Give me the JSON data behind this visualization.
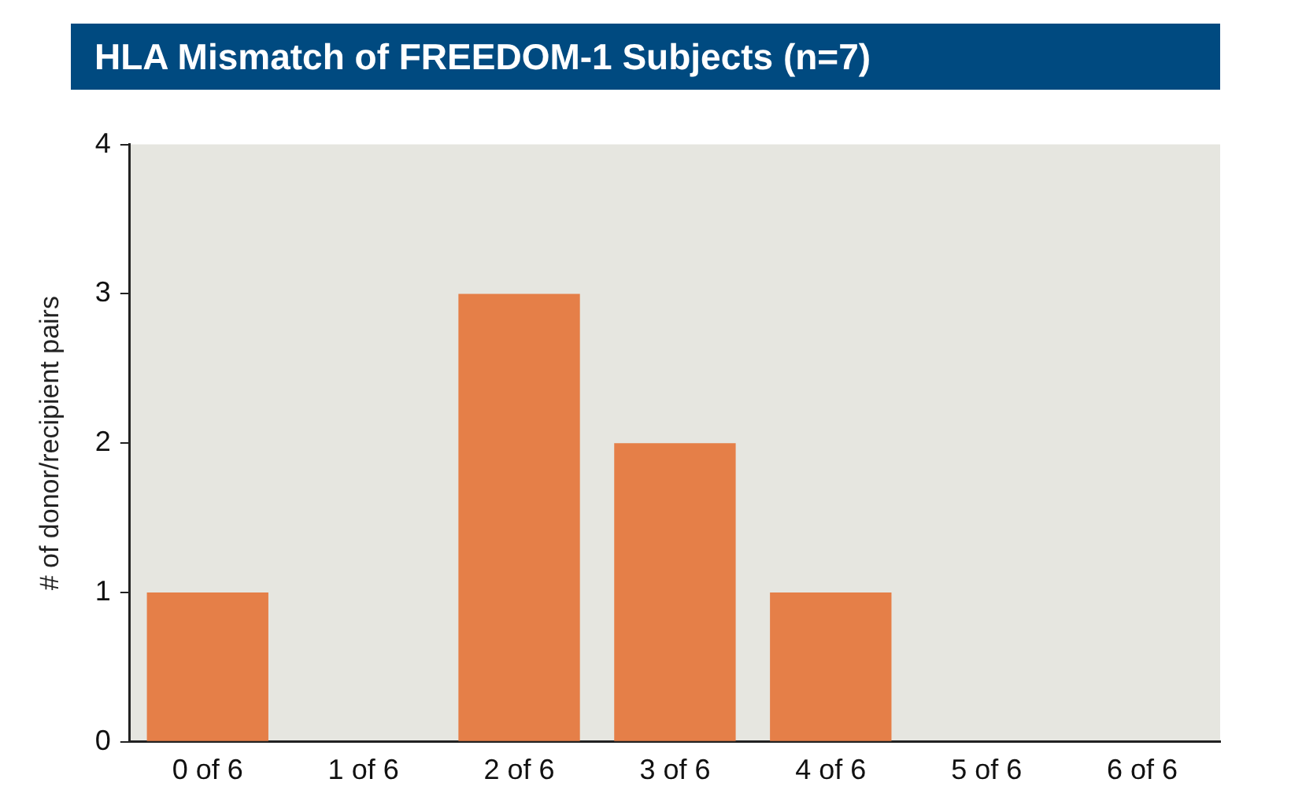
{
  "chart_data": {
    "type": "bar",
    "title": "HLA Mismatch of FREEDOM-1 Subjects (n=7)",
    "ylabel": "# of donor/recipient pairs",
    "categories": [
      "0 of 6",
      "1 of 6",
      "2 of 6",
      "3 of 6",
      "4 of 6",
      "5 of 6",
      "6 of 6"
    ],
    "values": [
      1,
      0,
      3,
      2,
      1,
      0,
      0
    ],
    "color": "#e57f48",
    "ylim": [
      0,
      4
    ],
    "yticks": [
      0,
      1,
      2,
      3,
      4
    ],
    "grid": false,
    "legend": false
  }
}
